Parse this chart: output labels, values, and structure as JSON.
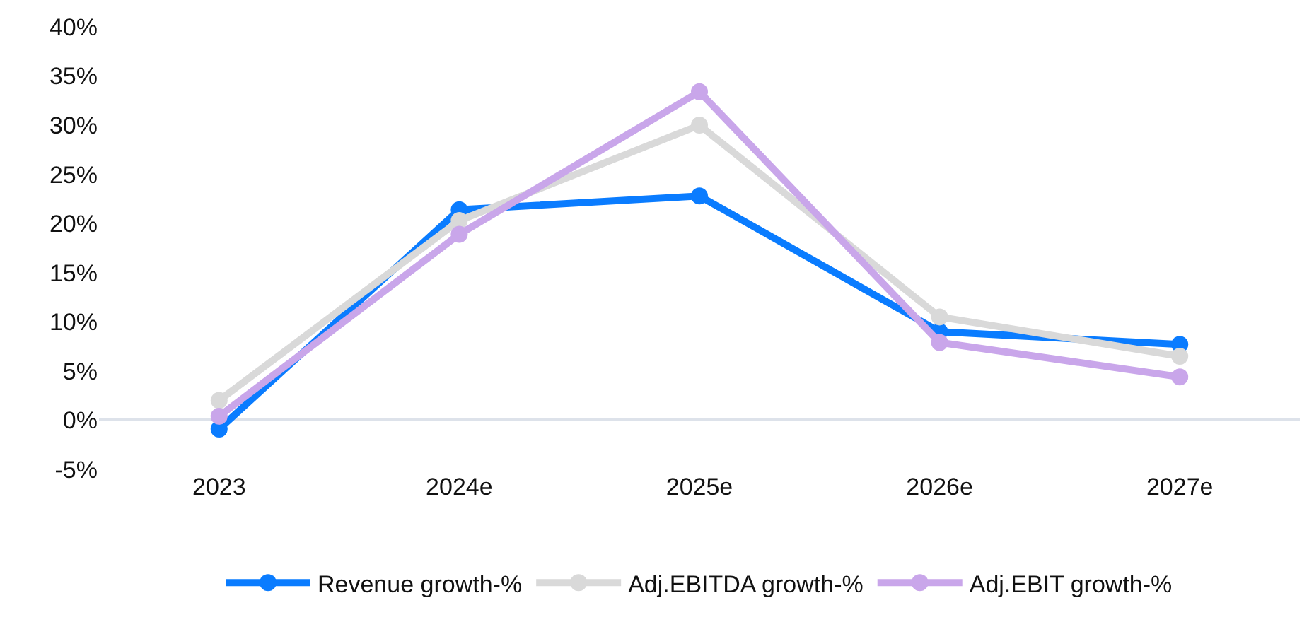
{
  "chart_data": {
    "type": "line",
    "categories": [
      "2023",
      "2024e",
      "2025e",
      "2026e",
      "2027e"
    ],
    "series": [
      {
        "name": "Revenue growth-%",
        "color": "#0a7cff",
        "values": [
          -0.9,
          21.4,
          22.8,
          9.0,
          7.7
        ]
      },
      {
        "name": "Adj.EBITDA growth-%",
        "color": "#d9d9d9",
        "values": [
          2.0,
          20.3,
          30.0,
          10.5,
          6.5
        ]
      },
      {
        "name": "Adj.EBIT growth-%",
        "color": "#c9a6ea",
        "values": [
          0.4,
          18.9,
          33.4,
          7.9,
          4.4
        ]
      }
    ],
    "ylim": [
      -5,
      40
    ],
    "yticks": [
      {
        "value": -5,
        "label": "-5%"
      },
      {
        "value": 0,
        "label": "0%"
      },
      {
        "value": 5,
        "label": "5%"
      },
      {
        "value": 10,
        "label": "10%"
      },
      {
        "value": 15,
        "label": "15%"
      },
      {
        "value": 20,
        "label": "20%"
      },
      {
        "value": 25,
        "label": "25%"
      },
      {
        "value": 30,
        "label": "30%"
      },
      {
        "value": 35,
        "label": "35%"
      },
      {
        "value": 40,
        "label": "40%"
      }
    ],
    "grid": false,
    "legend": "bottom",
    "marker": "circle",
    "line_style": "solid"
  }
}
